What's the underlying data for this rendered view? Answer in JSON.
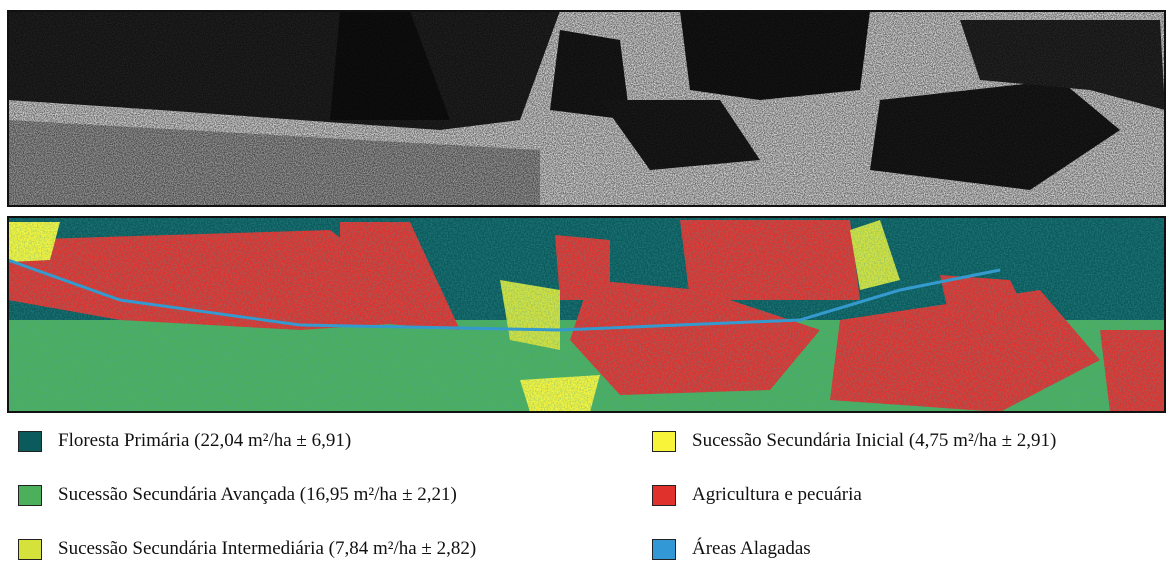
{
  "legend": {
    "items": [
      {
        "label": "Floresta Primária (22,04 m²/ha ± 6,91)",
        "color": "#0b5a5c"
      },
      {
        "label": "Sucessão Secundária Avançada (16,95 m²/ha ± 2,21)",
        "color": "#4caf5c"
      },
      {
        "label": "Sucessão Secundária Intermediária (7,84 m²/ha ± 2,82)",
        "color": "#d6e23c"
      },
      {
        "label": "Sucessão Secundária Inicial (4,75 m²/ha ± 2,91)",
        "color": "#f7f43a"
      },
      {
        "label": "Agricultura e pecuária",
        "color": "#e0312d"
      },
      {
        "label": "Áreas Alagadas",
        "color": "#3399d6"
      }
    ]
  }
}
